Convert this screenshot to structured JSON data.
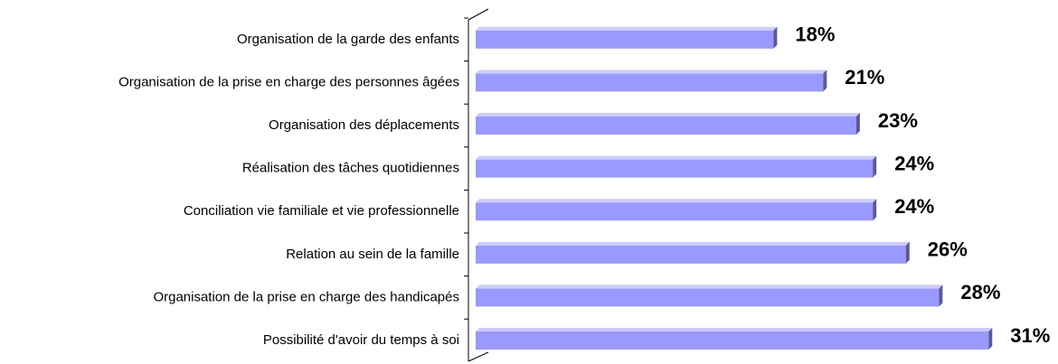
{
  "chart_data": {
    "type": "bar",
    "orientation": "horizontal",
    "categories": [
      "Organisation de la garde des enfants",
      "Organisation de la prise en charge des personnes âgées",
      "Organisation des déplacements",
      "Réalisation des tâches quotidiennes",
      "Conciliation vie familiale et vie professionnelle",
      "Relation au sein de la famille",
      "Organisation de la prise en charge des handicapés",
      "Possibilité d'avoir du temps à soi"
    ],
    "values": [
      18,
      21,
      23,
      24,
      24,
      26,
      28,
      31
    ],
    "value_labels": [
      "18%",
      "21%",
      "23%",
      "24%",
      "24%",
      "26%",
      "28%",
      "31%"
    ],
    "color": "#9999ff"
  }
}
